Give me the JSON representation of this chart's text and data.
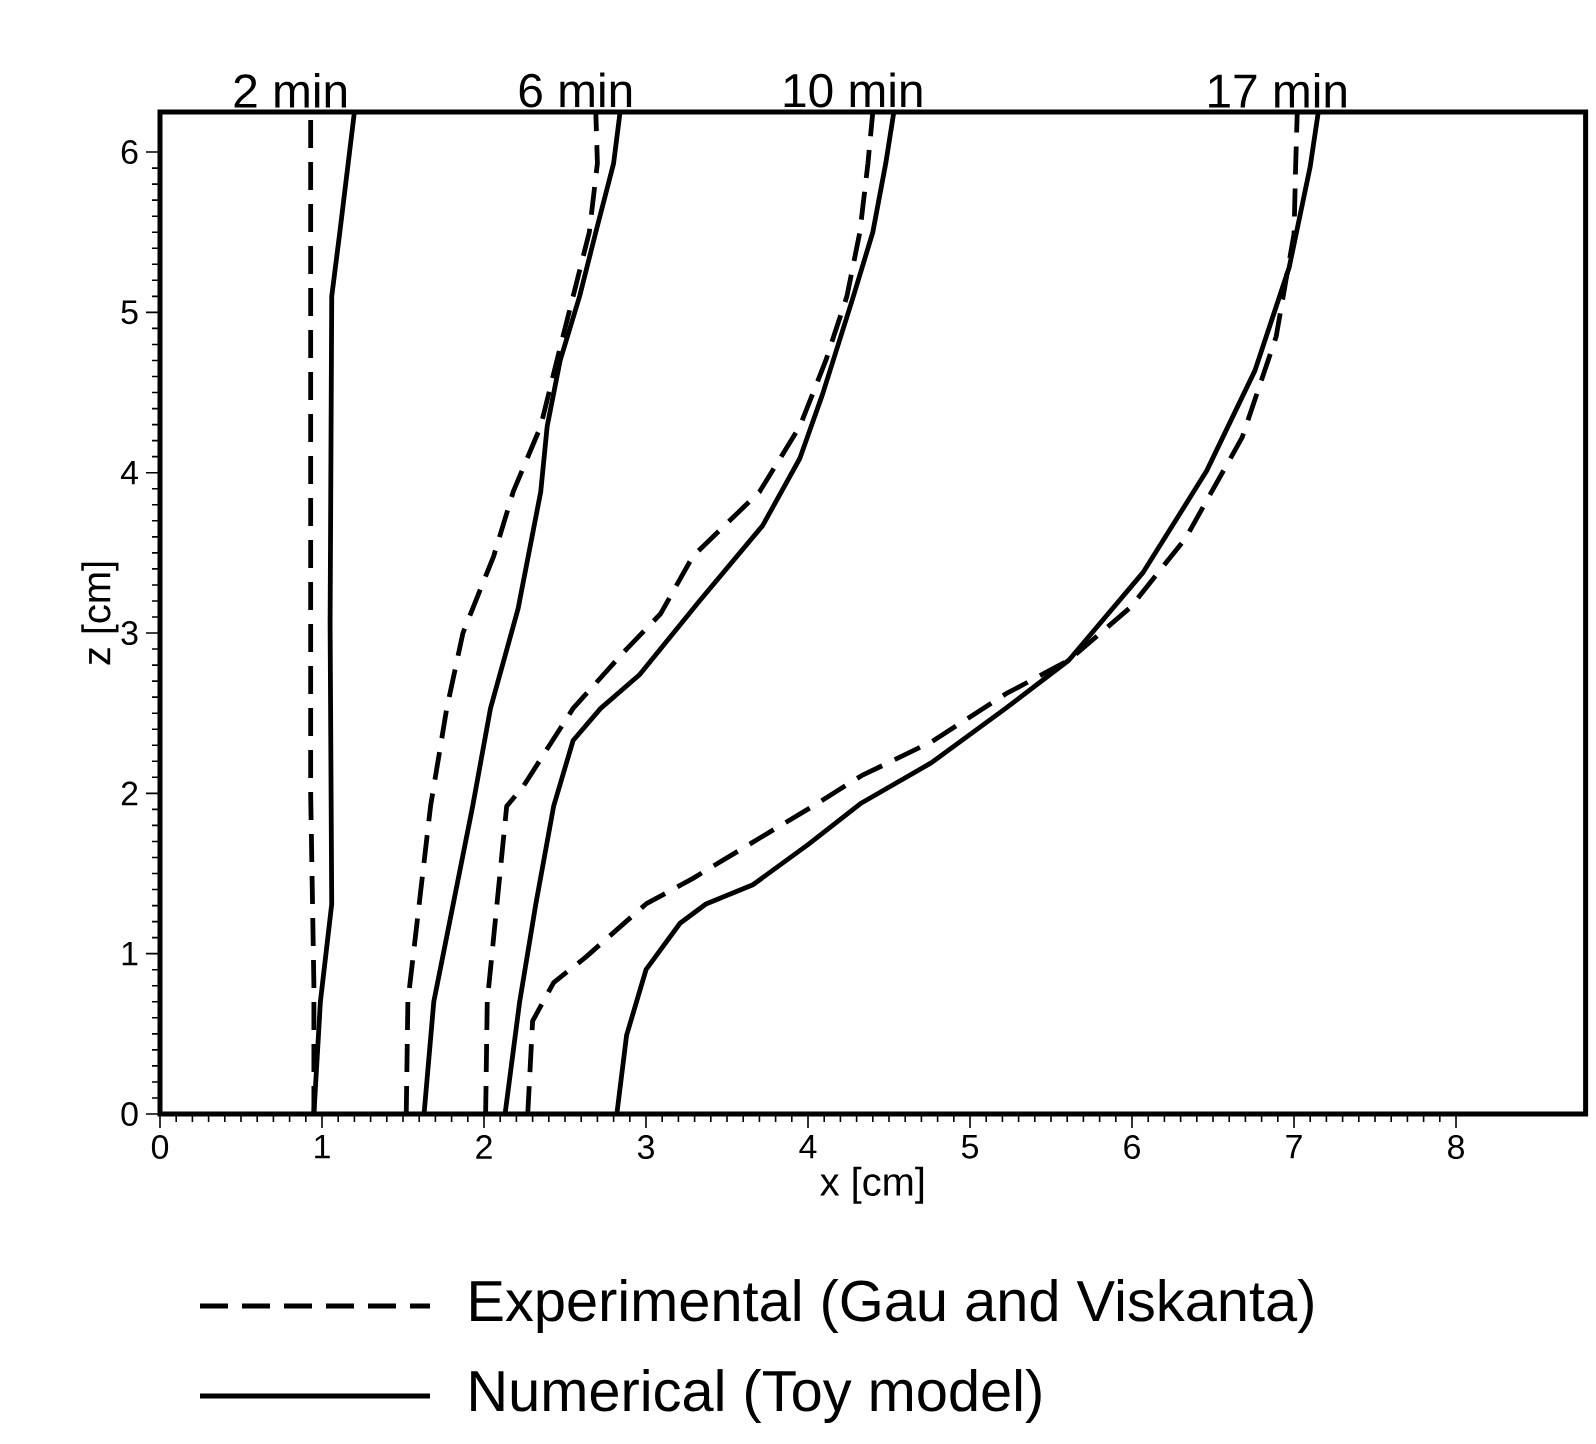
{
  "chart_data": {
    "type": "line",
    "xlabel": "x [cm]",
    "ylabel": "z [cm]",
    "xlim": [
      0,
      8.8
    ],
    "ylim": [
      0,
      6.25
    ],
    "xticks": [
      0,
      1,
      2,
      3,
      4,
      5,
      6,
      7,
      8
    ],
    "yticks": [
      0,
      1,
      2,
      3,
      4,
      5,
      6
    ],
    "legend": "bottom",
    "annotations": [
      {
        "text": "2 min",
        "x": 0.93,
        "y": 6.25
      },
      {
        "text": "6 min",
        "x": 2.69,
        "y": 6.25
      },
      {
        "text": "10 min",
        "x": 4.4,
        "y": 6.25
      },
      {
        "text": "17 min",
        "x": 7.02,
        "y": 6.25
      }
    ],
    "series": [
      {
        "name": "Experimental (Gau and Viskanta)",
        "color": "#000000",
        "line_style": "dashed",
        "x": [
          0.95,
          0.95,
          0.93,
          0.93,
          0.93
        ],
        "values": [
          0,
          0.8,
          2.0,
          4.0,
          6.25
        ]
      },
      {
        "name": "Numerical (Toy model)",
        "color": "#000000",
        "line_style": "solid",
        "x": [
          0.95,
          0.99,
          1.06,
          1.05,
          1.06,
          1.11,
          1.2
        ],
        "values": [
          0,
          0.7,
          1.31,
          3.06,
          5.1,
          5.5,
          6.25
        ]
      },
      {
        "color": "#000000",
        "line_style": "dashed",
        "x": [
          1.52,
          1.53,
          1.6,
          1.67,
          1.77,
          1.87,
          2.06,
          2.18,
          2.35,
          2.45,
          2.55,
          2.65,
          2.7,
          2.69
        ],
        "values": [
          0,
          0.7,
          1.31,
          1.92,
          2.53,
          3.0,
          3.48,
          3.88,
          4.29,
          4.7,
          5.1,
          5.5,
          5.93,
          6.25
        ]
      },
      {
        "color": "#000000",
        "line_style": "solid",
        "x": [
          1.63,
          1.69,
          1.81,
          1.93,
          2.04,
          2.21,
          2.35,
          2.39,
          2.47,
          2.59,
          2.69,
          2.8,
          2.84
        ],
        "values": [
          0,
          0.7,
          1.31,
          1.92,
          2.53,
          3.15,
          3.88,
          4.29,
          4.7,
          5.1,
          5.5,
          5.93,
          6.25
        ]
      },
      {
        "color": "#000000",
        "line_style": "dashed",
        "x": [
          2.01,
          2.02,
          2.08,
          2.14,
          2.24,
          2.55,
          2.88,
          3.09,
          3.29,
          3.7,
          3.95,
          4.11,
          4.24,
          4.32,
          4.37,
          4.4
        ],
        "values": [
          0,
          0.7,
          1.31,
          1.92,
          2.04,
          2.53,
          2.9,
          3.12,
          3.48,
          3.88,
          4.29,
          4.7,
          5.1,
          5.5,
          5.93,
          6.25
        ]
      },
      {
        "color": "#000000",
        "line_style": "solid",
        "x": [
          2.13,
          2.22,
          2.32,
          2.43,
          2.55,
          2.72,
          2.96,
          3.33,
          3.72,
          3.95,
          4.09,
          4.28,
          4.4,
          4.48,
          4.53
        ],
        "values": [
          0,
          0.7,
          1.31,
          1.92,
          2.33,
          2.53,
          2.74,
          3.2,
          3.67,
          4.09,
          4.49,
          5.1,
          5.5,
          5.93,
          6.25
        ]
      },
      {
        "color": "#000000",
        "line_style": "dashed",
        "x": [
          2.27,
          2.3,
          2.43,
          2.63,
          3.0,
          3.29,
          3.7,
          4.03,
          4.33,
          4.76,
          5.22,
          5.61,
          5.99,
          6.33,
          6.68,
          6.89,
          7.0,
          7.01,
          7.02
        ],
        "values": [
          0,
          0.58,
          0.82,
          0.98,
          1.31,
          1.47,
          1.72,
          1.92,
          2.11,
          2.32,
          2.62,
          2.83,
          3.16,
          3.59,
          4.22,
          4.85,
          5.49,
          5.91,
          6.25
        ]
      },
      {
        "color": "#000000",
        "line_style": "solid",
        "x": [
          2.82,
          2.88,
          3.0,
          3.21,
          3.37,
          3.66,
          4.0,
          4.33,
          4.76,
          5.22,
          5.61,
          6.07,
          6.46,
          6.76,
          6.97,
          7.1,
          7.15
        ],
        "values": [
          0,
          0.49,
          0.9,
          1.19,
          1.31,
          1.43,
          1.68,
          1.94,
          2.19,
          2.53,
          2.83,
          3.38,
          4.01,
          4.64,
          5.28,
          5.91,
          6.25
        ]
      }
    ]
  }
}
